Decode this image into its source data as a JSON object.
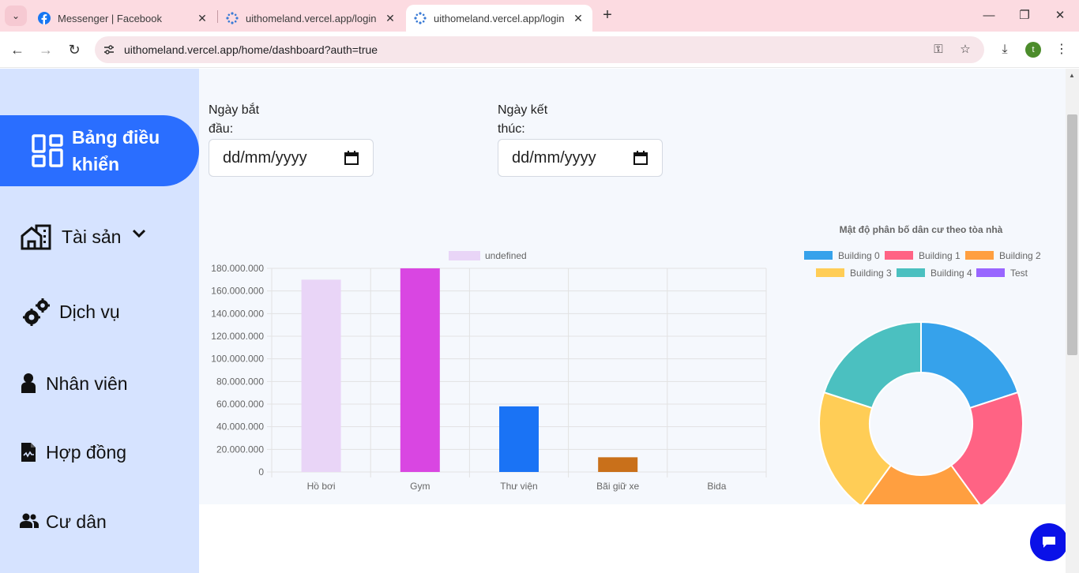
{
  "browser": {
    "tabs": [
      {
        "title": "Messenger | Facebook",
        "active": false
      },
      {
        "title": "uithomeland.vercel.app/login",
        "active": false
      },
      {
        "title": "uithomeland.vercel.app/login",
        "active": true
      }
    ],
    "url": "uithomeland.vercel.app/home/dashboard?auth=true",
    "profile_initial": "t"
  },
  "sidebar": {
    "active_item": {
      "label": "Bảng điều khiển",
      "icon": "dashboard-icon"
    },
    "items": [
      {
        "label": "Tài sản",
        "icon": "building-icon",
        "has_dropdown": true
      },
      {
        "label": "Dịch vụ",
        "icon": "gears-icon"
      },
      {
        "label": "Nhân viên",
        "icon": "user-icon"
      },
      {
        "label": "Hợp đồng",
        "icon": "contract-icon"
      },
      {
        "label": "Cư dân",
        "icon": "users-icon"
      }
    ]
  },
  "filters": {
    "start_date": {
      "label": "Ngày bắt đầu:",
      "line1": "Ngày bắt",
      "line2": "đầu:",
      "placeholder": "dd/mm/yyyy"
    },
    "end_date": {
      "label": "Ngày kết thúc:",
      "line1": "Ngày kết",
      "line2": "thúc:",
      "placeholder": "dd/mm/yyyy"
    }
  },
  "chart_data": [
    {
      "type": "bar",
      "legend": [
        "undefined"
      ],
      "categories": [
        "Hồ bơi",
        "Gym",
        "Thư viện",
        "Bãi giữ xe",
        "Bida"
      ],
      "values": [
        170000000,
        180000000,
        58000000,
        13000000,
        0
      ],
      "colors": [
        "#e9d5f7",
        "#d946e2",
        "#1a73f5",
        "#c9701a",
        "#cccccc"
      ],
      "ylim": [
        0,
        180000000
      ],
      "yticks": [
        "0",
        "20.000.000",
        "40.000.000",
        "60.000.000",
        "80.000.000",
        "100.000.000",
        "120.000.000",
        "140.000.000",
        "160.000.000",
        "180.000.000"
      ],
      "grid": true,
      "legend_position": "top"
    },
    {
      "type": "pie",
      "subtype": "doughnut",
      "title": "Mật độ phân bố dân cư theo tòa nhà",
      "labels": [
        "Building 0",
        "Building 1",
        "Building 2",
        "Building 3",
        "Building 4",
        "Test"
      ],
      "values": [
        1,
        1,
        1,
        1,
        1,
        0
      ],
      "colors": [
        "#36a2eb",
        "#ff6384",
        "#ff9f40",
        "#ffcd56",
        "#4bc0c0",
        "#9966ff"
      ],
      "legend_position": "top"
    }
  ]
}
